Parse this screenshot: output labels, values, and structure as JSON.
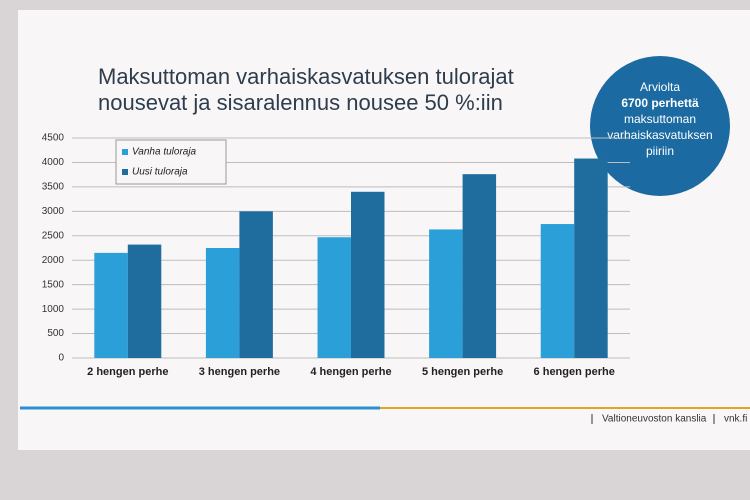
{
  "chart_data": {
    "type": "bar",
    "title_lines": [
      "Maksuttoman varhaiskasvatuksen tulorajat",
      "nousevat ja sisaralennus nousee 50 %:iin"
    ],
    "categories": [
      "2 hengen perhe",
      "3 hengen perhe",
      "4 hengen perhe",
      "5 hengen perhe",
      "6 hengen perhe"
    ],
    "series": [
      {
        "name": "Vanha tuloraja",
        "color": "#2b9fd8",
        "values": [
          2150,
          2250,
          2470,
          2630,
          2740
        ]
      },
      {
        "name": "Uusi tuloraja",
        "color": "#1f6c9f",
        "values": [
          2320,
          3000,
          3400,
          3760,
          4080
        ]
      }
    ],
    "ylim": [
      0,
      4500
    ],
    "yticks": [
      0,
      500,
      1000,
      1500,
      2000,
      2500,
      3000,
      3500,
      4000,
      4500
    ],
    "grid": true,
    "legend": "top-left"
  },
  "bubble": {
    "lines": [
      "Arviolta",
      "6700 perhettä",
      "maksuttoman",
      "varhaiskasvatuksen",
      "piiriin"
    ]
  },
  "footer": {
    "organization": "Valtioneuvoston kanslia",
    "site": "vnk.fi"
  }
}
